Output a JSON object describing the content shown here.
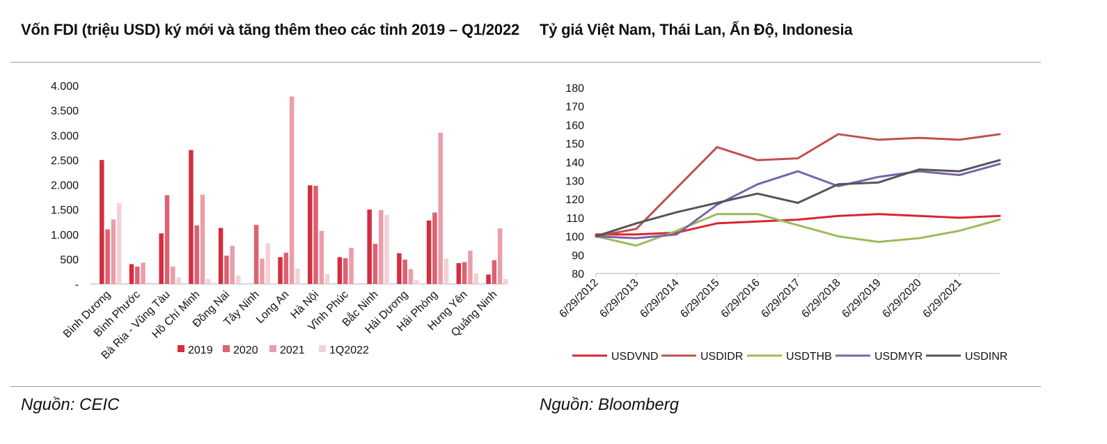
{
  "titles": {
    "left": "Vốn FDI (triệu USD) ký mới và tăng thêm theo các tỉnh 2019 – Q1/2022",
    "right": "Tỷ giá Việt Nam, Thái Lan, Ấn Độ, Indonesia"
  },
  "sources": {
    "left": "Nguồn: CEIC",
    "right": "Nguồn: Bloomberg"
  },
  "chart_data": [
    {
      "type": "bar",
      "title": "Vốn FDI (triệu USD) ký mới và tăng thêm theo các tỉnh 2019 – Q1/2022",
      "categories": [
        "Bình Dương",
        "Bình Phước",
        "Bà Rịa - Vũng Tàu",
        "Hồ Chí Minh",
        "Đồng Nai",
        "Tây Ninh",
        "Long An",
        "Hà Nội",
        "Vĩnh Phúc",
        "Bắc Ninh",
        "Hải Dương",
        "Hải Phòng",
        "Hưng Yên",
        "Quảng Ninh"
      ],
      "yticks": [
        "-",
        "500",
        "1.000",
        "1.500",
        "2.000",
        "2.500",
        "3.000",
        "3.500",
        "4.000"
      ],
      "ylim": [
        0,
        4000
      ],
      "legend_position": "bottom",
      "grid": false,
      "series": [
        {
          "name": "2019",
          "color": "#d42e3e",
          "values": [
            2500,
            400,
            1020,
            2700,
            1130,
            0,
            540,
            1990,
            540,
            1500,
            620,
            1280,
            420,
            190
          ]
        },
        {
          "name": "2020",
          "color": "#de6171",
          "values": [
            1100,
            350,
            1790,
            1180,
            570,
            1190,
            630,
            1980,
            520,
            810,
            490,
            1440,
            440,
            480
          ]
        },
        {
          "name": "2021",
          "color": "#eb9eaa",
          "values": [
            1300,
            430,
            350,
            1800,
            770,
            510,
            3780,
            1070,
            730,
            1490,
            300,
            3050,
            670,
            1120
          ]
        },
        {
          "name": "1Q2022",
          "color": "#f6cfd6",
          "values": [
            1630,
            30,
            130,
            100,
            170,
            820,
            310,
            200,
            0,
            1390,
            80,
            510,
            210,
            100
          ]
        }
      ]
    },
    {
      "type": "line",
      "title": "Tỷ giá Việt Nam, Thái Lan, Ấn Độ, Indonesia",
      "xticks": [
        "6/29/2012",
        "6/29/2013",
        "6/29/2014",
        "6/29/2015",
        "6/29/2016",
        "6/29/2017",
        "6/29/2018",
        "6/29/2019",
        "6/29/2020",
        "6/29/2021"
      ],
      "xlim": [
        "6/29/2012",
        "6/29/2022"
      ],
      "yticks": [
        80,
        90,
        100,
        110,
        120,
        130,
        140,
        150,
        160,
        170,
        180
      ],
      "ylim": [
        80,
        180
      ],
      "legend_position": "bottom",
      "grid": false,
      "series": [
        {
          "name": "USDVND",
          "color": "#d9252f",
          "x": [
            "6/29/2012",
            "6/29/2013",
            "6/29/2014",
            "6/29/2015",
            "6/29/2016",
            "6/29/2017",
            "6/29/2018",
            "6/29/2019",
            "6/29/2020",
            "6/29/2021",
            "6/29/2022"
          ],
          "values": [
            101,
            101,
            102,
            107,
            108,
            109,
            111,
            112,
            111,
            110,
            111
          ]
        },
        {
          "name": "USDIDR",
          "color": "#c0504d",
          "x": [
            "6/29/2012",
            "6/29/2013",
            "6/29/2014",
            "6/29/2015",
            "6/29/2016",
            "6/29/2017",
            "6/29/2018",
            "6/29/2019",
            "6/29/2020",
            "6/29/2021",
            "6/29/2022"
          ],
          "values": [
            100,
            104,
            126,
            148,
            141,
            142,
            155,
            152,
            153,
            152,
            155
          ]
        },
        {
          "name": "USDTHB",
          "color": "#9bbb59",
          "x": [
            "6/29/2012",
            "6/29/2013",
            "6/29/2014",
            "6/29/2015",
            "6/29/2016",
            "6/29/2017",
            "6/29/2018",
            "6/29/2019",
            "6/29/2020",
            "6/29/2021",
            "6/29/2022"
          ],
          "values": [
            100,
            95,
            103,
            112,
            112,
            106,
            100,
            97,
            99,
            103,
            109
          ]
        },
        {
          "name": "USDMYR",
          "color": "#7b62a8",
          "x": [
            "6/29/2012",
            "6/29/2013",
            "6/29/2014",
            "6/29/2015",
            "6/29/2016",
            "6/29/2017",
            "6/29/2018",
            "6/29/2019",
            "6/29/2020",
            "6/29/2021",
            "6/29/2022"
          ],
          "values": [
            100,
            99,
            101,
            117,
            128,
            135,
            127,
            132,
            135,
            133,
            139
          ]
        },
        {
          "name": "USDINR",
          "color": "#555555",
          "x": [
            "6/29/2012",
            "6/29/2013",
            "6/29/2014",
            "6/29/2015",
            "6/29/2016",
            "6/29/2017",
            "6/29/2018",
            "6/29/2019",
            "6/29/2020",
            "6/29/2021",
            "6/29/2022"
          ],
          "values": [
            100,
            107,
            113,
            118,
            123,
            118,
            128,
            129,
            136,
            135,
            141
          ]
        }
      ]
    }
  ]
}
